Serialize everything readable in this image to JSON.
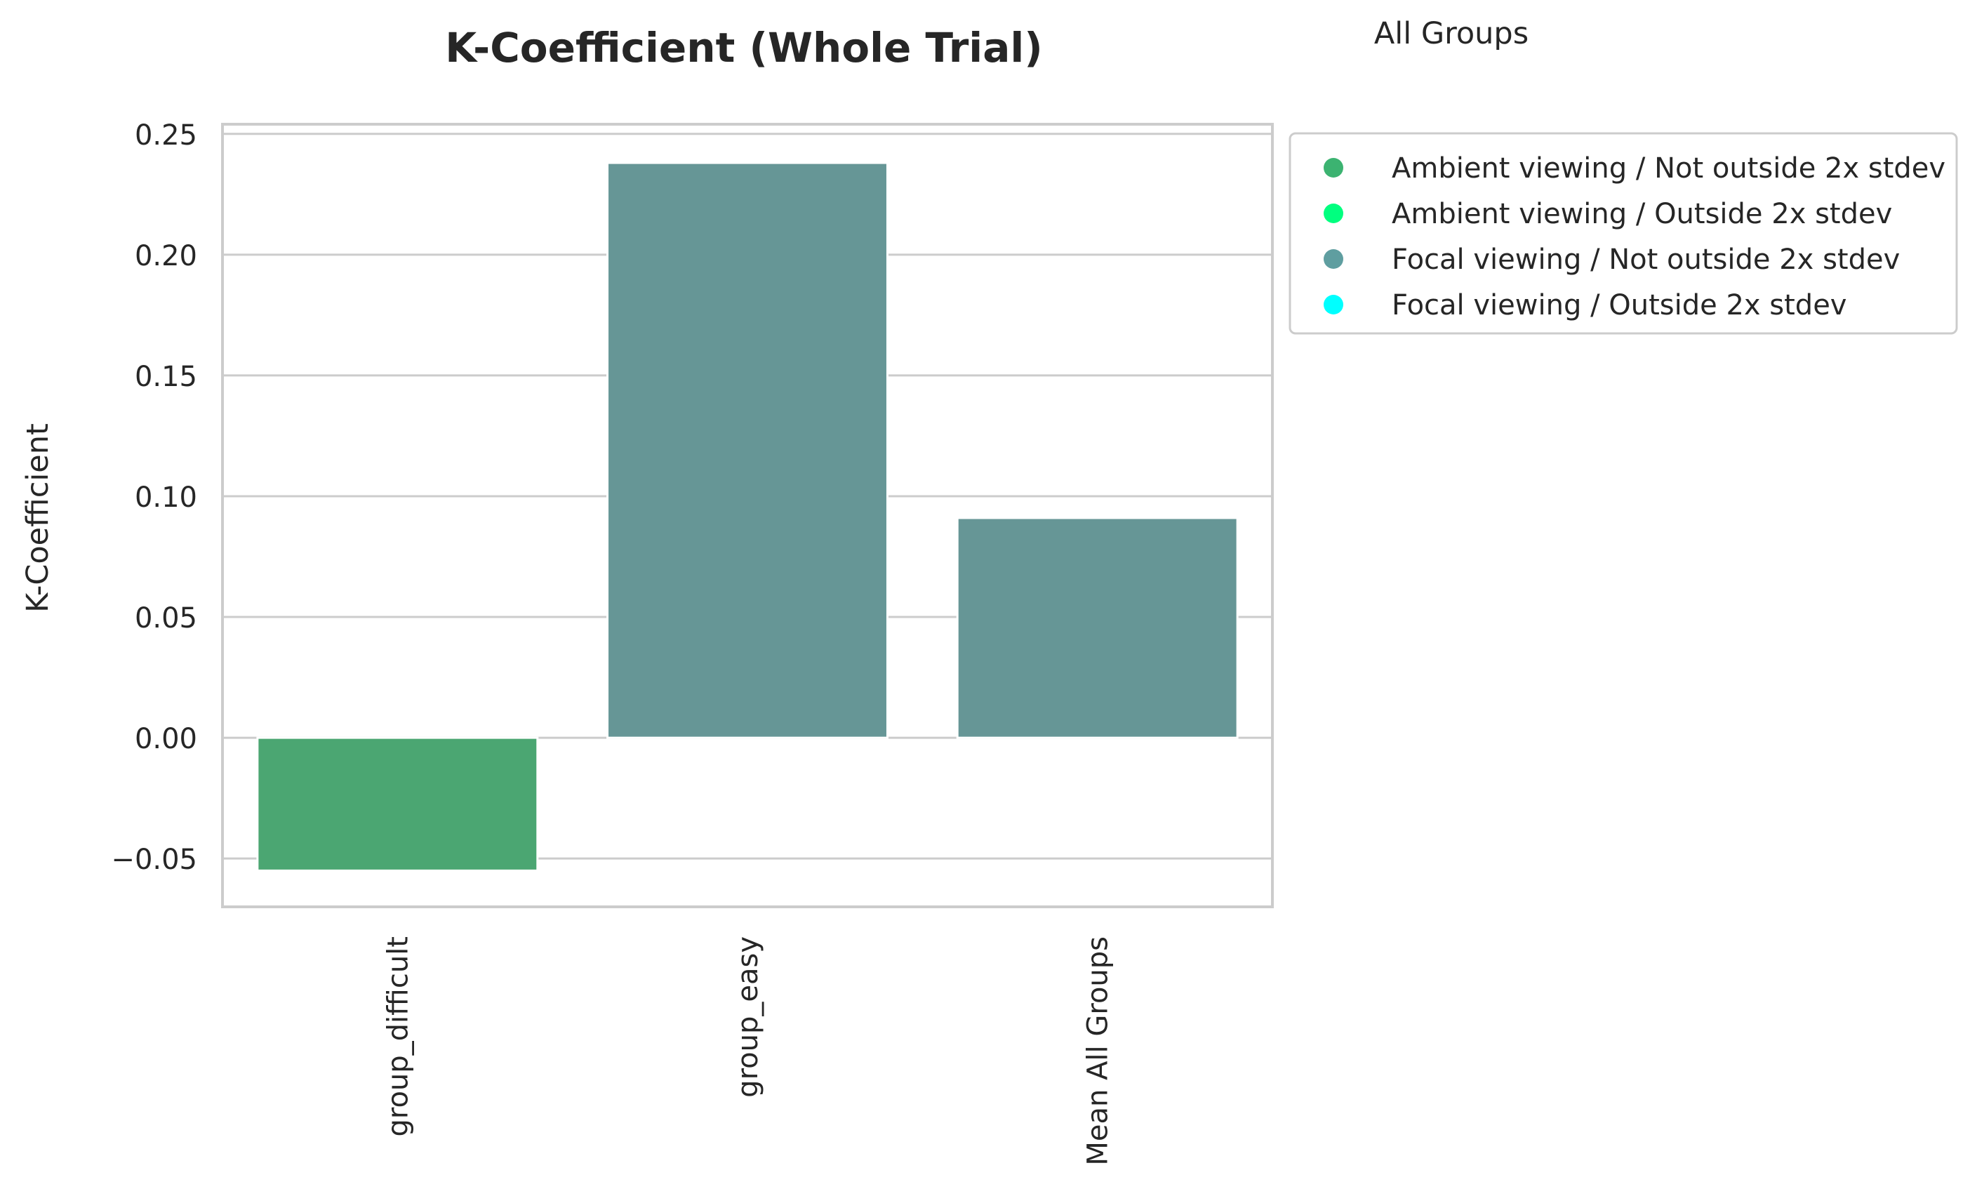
{
  "chart_data": {
    "type": "bar",
    "title": "K-Coefficient (Whole Trial)",
    "ylabel": "K-Coefficient",
    "xlabel": "",
    "categories": [
      "group_difficult",
      "group_easy",
      "Mean All Groups"
    ],
    "values": [
      -0.055,
      0.238,
      0.091
    ],
    "bar_colors": [
      "#4ba672",
      "#669696",
      "#669696"
    ],
    "ylim": [
      -0.07,
      0.254
    ],
    "yticks": [
      -0.05,
      0.0,
      0.05,
      0.1,
      0.15,
      0.2,
      0.25
    ],
    "ytick_labels": [
      "−0.05",
      "0.00",
      "0.05",
      "0.10",
      "0.15",
      "0.20",
      "0.25"
    ],
    "grid": true,
    "legend": {
      "title": "All Groups",
      "placement": "outside-right-top",
      "entries": [
        {
          "label": "Ambient viewing / Not outside 2x stdev",
          "color": "#3cb371"
        },
        {
          "label": "Ambient viewing / Outside 2x stdev",
          "color": "#00ff7f"
        },
        {
          "label": "Focal viewing / Not outside 2x stdev",
          "color": "#5f9ea0"
        },
        {
          "label": "Focal viewing / Outside 2x stdev",
          "color": "#00ffff"
        }
      ]
    },
    "colors": {
      "grid": "#cccccc",
      "spine": "#cccccc",
      "text": "#262626"
    }
  }
}
